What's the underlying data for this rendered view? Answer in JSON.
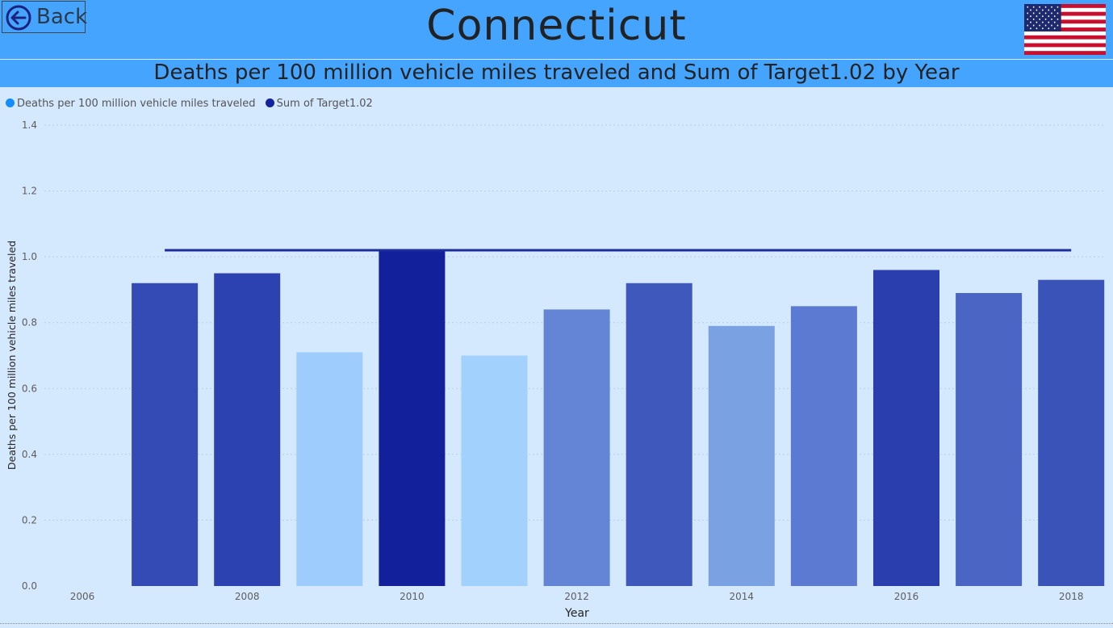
{
  "header": {
    "back_label": "Back",
    "page_title": "Connecticut",
    "flag_icon": "us-flag-icon"
  },
  "colors": {
    "header_bg": "#45a5fe",
    "page_bg": "#d4e8fe",
    "target_line": "#1d2e9c",
    "legend_deaths": "#118dff",
    "legend_target": "#12239e"
  },
  "chart_data": {
    "type": "bar",
    "title": "Deaths per 100 million vehicle miles traveled and Sum of Target1.02 by Year",
    "xlabel": "Year",
    "ylabel": "Deaths per 100 million vehicle miles traveled",
    "ylim": [
      0,
      1.4
    ],
    "yticks": [
      "0.0",
      "0.2",
      "0.4",
      "0.6",
      "0.8",
      "1.0",
      "1.2",
      "1.4"
    ],
    "xticks": [
      "2006",
      "2008",
      "2010",
      "2012",
      "2014",
      "2016",
      "2018"
    ],
    "grid": true,
    "legend_position": "top-left",
    "categories": [
      2007,
      2008,
      2009,
      2010,
      2011,
      2012,
      2013,
      2014,
      2015,
      2016,
      2017,
      2018
    ],
    "series": [
      {
        "name": "Deaths per 100 million vehicle miles traveled",
        "type": "bar",
        "values": [
          0.92,
          0.95,
          0.71,
          1.02,
          0.7,
          0.84,
          0.92,
          0.79,
          0.85,
          0.96,
          0.89,
          0.93
        ],
        "colors": [
          "#344bb6",
          "#2c42b0",
          "#9ecdfd",
          "#12209c",
          "#a2d1fe",
          "#6484d6",
          "#3f58bc",
          "#7aa1e2",
          "#5d7ad2",
          "#2a3eae",
          "#4b65c4",
          "#3a53b9"
        ]
      },
      {
        "name": "Sum of Target1.02",
        "type": "line",
        "values": [
          1.02,
          1.02,
          1.02,
          1.02,
          1.02,
          1.02,
          1.02,
          1.02,
          1.02,
          1.02,
          1.02,
          1.02
        ]
      }
    ]
  }
}
